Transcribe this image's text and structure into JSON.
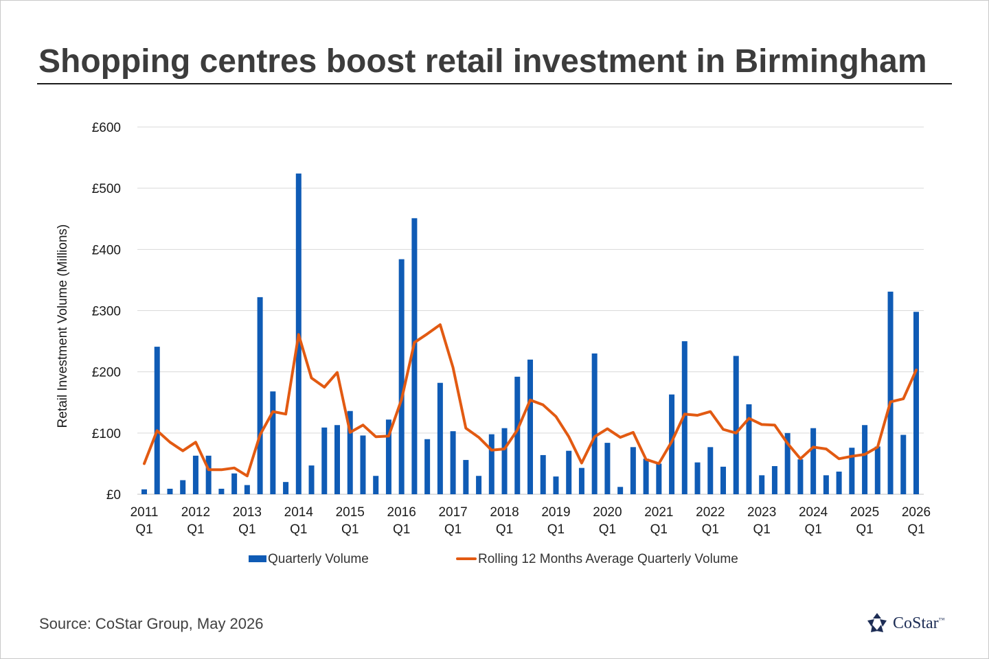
{
  "title": "Shopping centres boost retail investment in Birmingham",
  "source": "Source: CoStar Group, May 2026",
  "brand": {
    "name": "CoStar",
    "mark": "™",
    "icon": "costar-logo-icon"
  },
  "colors": {
    "bar": "#0f5bb5",
    "line": "#e25a12",
    "grid": "#d9d9d9",
    "text": "#1a1a1a"
  },
  "legend": {
    "bar_label": "Quarterly Volume",
    "line_label": "Rolling 12 Months Average Quarterly Volume",
    "position": "bottom"
  },
  "chart_data": {
    "type": "bar",
    "ylabel": "Retail Investment Volume (Millions)",
    "ylim": [
      0,
      600
    ],
    "y_ticks": [
      0,
      100,
      200,
      300,
      400,
      500,
      600
    ],
    "y_tick_labels": [
      "£0",
      "£100",
      "£200",
      "£300",
      "£400",
      "£500",
      "£600"
    ],
    "grid": true,
    "x_tick_labels": [
      {
        "year": "2011",
        "quarter": "Q1"
      },
      {
        "year": "2012",
        "quarter": "Q1"
      },
      {
        "year": "2013",
        "quarter": "Q1"
      },
      {
        "year": "2014",
        "quarter": "Q1"
      },
      {
        "year": "2015",
        "quarter": "Q1"
      },
      {
        "year": "2016",
        "quarter": "Q1"
      },
      {
        "year": "2017",
        "quarter": "Q1"
      },
      {
        "year": "2018",
        "quarter": "Q1"
      },
      {
        "year": "2019",
        "quarter": "Q1"
      },
      {
        "year": "2020",
        "quarter": "Q1"
      },
      {
        "year": "2021",
        "quarter": "Q1"
      },
      {
        "year": "2022",
        "quarter": "Q1"
      },
      {
        "year": "2023",
        "quarter": "Q1"
      },
      {
        "year": "2024",
        "quarter": "Q1"
      },
      {
        "year": "2025",
        "quarter": "Q1"
      },
      {
        "year": "2026",
        "quarter": "Q1"
      }
    ],
    "series": [
      {
        "name": "Quarterly Volume",
        "type": "bar",
        "values": [
          8,
          241,
          9,
          23,
          63,
          63,
          9,
          34,
          15,
          322,
          168,
          20,
          524,
          47,
          109,
          113,
          136,
          96,
          30,
          122,
          384,
          451,
          90,
          182,
          103,
          56,
          30,
          98,
          108,
          192,
          220,
          64,
          29,
          71,
          43,
          230,
          84,
          12,
          77,
          58,
          50,
          163,
          250,
          52,
          77,
          45,
          226,
          147,
          31,
          46,
          100,
          57,
          108,
          31,
          37,
          76,
          113,
          78,
          331,
          97,
          298
        ]
      },
      {
        "name": "Rolling 12 Months Average Quarterly Volume",
        "type": "line",
        "values": [
          50,
          104,
          85,
          71,
          85,
          40,
          40,
          43,
          30,
          97,
          135,
          131,
          261,
          190,
          175,
          199,
          101,
          113,
          94,
          95,
          155,
          248,
          262,
          277,
          207,
          108,
          93,
          72,
          74,
          105,
          154,
          146,
          127,
          94,
          51,
          94,
          107,
          93,
          101,
          57,
          50,
          86,
          131,
          129,
          135,
          106,
          100,
          124,
          114,
          113,
          83,
          58,
          77,
          74,
          58,
          62,
          65,
          77,
          151,
          156,
          203
        ]
      }
    ]
  }
}
